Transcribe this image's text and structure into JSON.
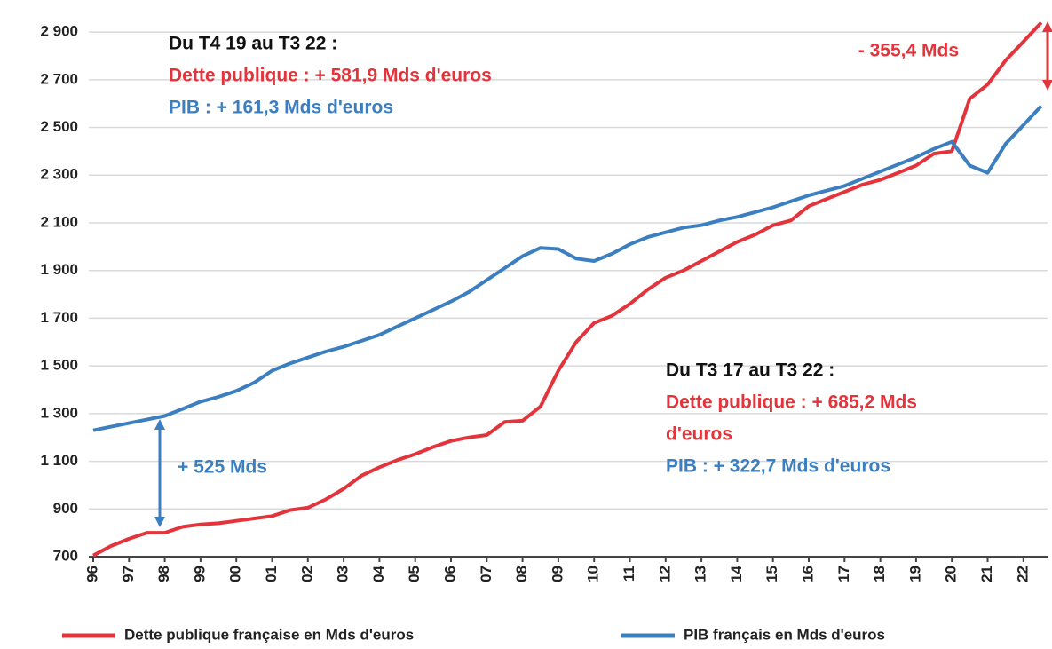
{
  "chart_data": {
    "type": "line",
    "categories": [
      "96",
      null,
      "97",
      null,
      "98",
      null,
      "99",
      null,
      "00",
      null,
      "01",
      null,
      "02",
      null,
      "03",
      null,
      "04",
      null,
      "05",
      null,
      "06",
      null,
      "07",
      null,
      "08",
      null,
      "09",
      null,
      "10",
      null,
      "11",
      null,
      "12",
      null,
      "13",
      null,
      "14",
      null,
      "15",
      null,
      "16",
      null,
      "17",
      null,
      "18",
      null,
      "19",
      null,
      "20",
      null,
      "21",
      null,
      "22",
      null
    ],
    "series": [
      {
        "name": "Dette publique française en Mds d'euros",
        "color": "#e3343c",
        "values": [
          705,
          745,
          775,
          800,
          800,
          825,
          835,
          840,
          850,
          860,
          870,
          895,
          905,
          940,
          985,
          1040,
          1075,
          1105,
          1130,
          1160,
          1185,
          1200,
          1210,
          1265,
          1270,
          1330,
          1480,
          1600,
          1680,
          1710,
          1760,
          1820,
          1870,
          1900,
          1940,
          1980,
          2020,
          2050,
          2090,
          2110,
          2170,
          2200,
          2230,
          2260,
          2280,
          2310,
          2340,
          2390,
          2400,
          2620,
          2680,
          2780,
          2860,
          2940
        ]
      },
      {
        "name": "PIB français en Mds d'euros",
        "color": "#3c7fc0",
        "values": [
          1230,
          1245,
          1260,
          1275,
          1290,
          1320,
          1350,
          1370,
          1395,
          1430,
          1480,
          1510,
          1535,
          1560,
          1580,
          1605,
          1630,
          1665,
          1700,
          1735,
          1770,
          1810,
          1860,
          1910,
          1960,
          1995,
          1990,
          1950,
          1940,
          1970,
          2010,
          2040,
          2060,
          2080,
          2090,
          2110,
          2125,
          2145,
          2165,
          2190,
          2215,
          2235,
          2255,
          2285,
          2315,
          2345,
          2375,
          2410,
          2440,
          2340,
          2310,
          2430,
          2510,
          2590
        ]
      }
    ],
    "ylim": [
      700,
      2960
    ],
    "yticks": [
      700,
      900,
      {
        "value": 1100,
        "label": "1 100"
      },
      {
        "value": 1300,
        "label": "1 300"
      },
      {
        "value": 1500,
        "label": "1 500"
      },
      {
        "value": 1700,
        "label": "1 700"
      },
      {
        "value": 1900,
        "label": "1 900"
      },
      {
        "value": 2100,
        "label": "2 100"
      },
      {
        "value": 2300,
        "label": "2 300"
      },
      {
        "value": 2500,
        "label": "2 500"
      },
      {
        "value": 2700,
        "label": "2 700"
      },
      {
        "value": 2900,
        "label": "2 900"
      }
    ],
    "grid": true,
    "legend": "bottom",
    "annotations": [
      {
        "lines": [
          {
            "text": "Du T4 19 au T3 22 :",
            "color": "#111111"
          },
          {
            "text": "Dette publique : + 581,9 Mds d'euros",
            "color": "#e3343c"
          },
          {
            "text": "PIB : + 161,3 Mds d'euros",
            "color": "#3c7fc0"
          }
        ]
      },
      {
        "lines": [
          {
            "text": "Du T3 17 au T3 22 :",
            "color": "#111111"
          },
          {
            "text": "Dette publique : + 685,2 Mds",
            "color": "#e3343c"
          },
          {
            "text": "d'euros",
            "color": "#e3343c"
          },
          {
            "text": "PIB : + 322,7 Mds d'euros",
            "color": "#3c7fc0"
          }
        ]
      },
      {
        "lines": [
          {
            "text": "+ 525 Mds",
            "color": "#3c7fc0"
          }
        ]
      },
      {
        "lines": [
          {
            "text": "- 355,4 Mds",
            "color": "#e3343c"
          }
        ]
      }
    ]
  }
}
